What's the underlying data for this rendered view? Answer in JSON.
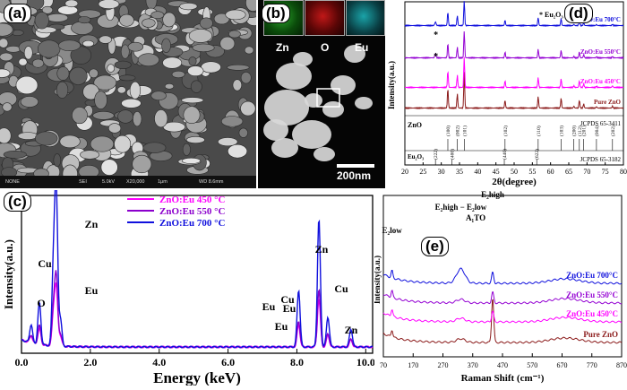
{
  "panels": {
    "a": {
      "label": "(a)",
      "sem_info": {
        "detector": "NONE",
        "mode": "SEI",
        "voltage": "5.0kV",
        "magnification": "X20,000",
        "scale": "1μm",
        "wd": "WD 8.6mm"
      }
    },
    "b": {
      "label": "(b)",
      "maps": [
        "Zn",
        "O",
        "Eu"
      ],
      "scale_bar": "200nm"
    },
    "c": {
      "label": "(c)"
    },
    "d": {
      "label": "(d)"
    },
    "e": {
      "label": "(e)"
    }
  },
  "chart_data": [
    {
      "panel": "c",
      "type": "line",
      "xlabel": "Energy (keV)",
      "ylabel": "Intensity(a.u.)",
      "xlim": [
        0,
        10.2
      ],
      "x_ticks": [
        0.0,
        2.0,
        4.0,
        6.0,
        8.0,
        10.0
      ],
      "x_tick_labels": [
        "0.0",
        "2.0",
        "4.0",
        "6.0",
        "8.0",
        "10.0"
      ],
      "legend_position": "top",
      "series": [
        {
          "name": "ZnO:Eu 450 °C",
          "color": "#ff00ff",
          "peak_scale": 0.38
        },
        {
          "name": "ZnO:Eu 550 °C",
          "color": "#8b00cc",
          "peak_scale": 0.45
        },
        {
          "name": "ZnO:Eu 700 °C",
          "color": "#1010dd",
          "peak_scale": 1.0
        }
      ],
      "peaks": [
        {
          "x": 0.28,
          "h": 0.12
        },
        {
          "x": 0.52,
          "h": 0.28
        },
        {
          "x": 0.93,
          "h": 0.55
        },
        {
          "x": 1.01,
          "h": 1.0
        },
        {
          "x": 1.13,
          "h": 0.18
        },
        {
          "x": 8.05,
          "h": 0.38
        },
        {
          "x": 8.64,
          "h": 0.85
        },
        {
          "x": 8.9,
          "h": 0.2
        },
        {
          "x": 9.57,
          "h": 0.12
        }
      ],
      "annotations": [
        "Zn",
        "Cu",
        "O",
        "Eu",
        "Eu",
        "Eu",
        "Cu",
        "Eu",
        "Zn",
        "Cu",
        "Zn"
      ]
    },
    {
      "panel": "d",
      "type": "line",
      "xlabel": "2θ(degree)",
      "ylabel": "Intensity(a.u.)",
      "xlim": [
        20,
        80
      ],
      "x_ticks": [
        20,
        25,
        30,
        35,
        40,
        45,
        50,
        55,
        60,
        65,
        70,
        75,
        80
      ],
      "series": [
        {
          "name": "Pure ZnO",
          "color": "#8b1a1a"
        },
        {
          "name": "ZnO:Eu 450°C",
          "color": "#ff00ff"
        },
        {
          "name": "ZnO:Eu 550°C",
          "color": "#9400d3"
        },
        {
          "name": "ZnO:Eu 700°C",
          "color": "#1010dd"
        }
      ],
      "peaks_2theta": [
        31.8,
        34.4,
        36.3,
        47.5,
        56.6,
        62.9,
        66.4,
        67.9,
        69.1,
        72.6,
        77.0
      ],
      "eu2o3_marker": "* Eu₂O₃",
      "eu2o3_star_2theta": 28.4,
      "reference_1": {
        "name": "ZnO",
        "card": "JCPDS 65-3411",
        "lines": [
          {
            "x": 31.8,
            "hkl": "(100)"
          },
          {
            "x": 34.4,
            "hkl": "(002)"
          },
          {
            "x": 36.3,
            "hkl": "(101)"
          },
          {
            "x": 47.5,
            "hkl": "(102)"
          },
          {
            "x": 56.6,
            "hkl": "(110)"
          },
          {
            "x": 62.9,
            "hkl": "(103)"
          },
          {
            "x": 66.4,
            "hkl": "(200)"
          },
          {
            "x": 67.9,
            "hkl": "(112)"
          },
          {
            "x": 69.1,
            "hkl": "(201)"
          },
          {
            "x": 72.6,
            "hkl": "(004)"
          },
          {
            "x": 77.0,
            "hkl": "(202)"
          }
        ]
      },
      "reference_2": {
        "name": "Eu₂O₃",
        "card": "JCPDS 65-3182",
        "lines": [
          {
            "x": 28.4,
            "hkl": "(222)"
          },
          {
            "x": 32.9,
            "hkl": "(400)"
          },
          {
            "x": 47.3,
            "hkl": "(440)"
          },
          {
            "x": 56.2,
            "hkl": "(622)"
          }
        ]
      }
    },
    {
      "panel": "e",
      "type": "line",
      "xlabel": "Raman Shift (cm⁻¹)",
      "ylabel": "Intensity(a.u.)",
      "xlim": [
        70,
        870
      ],
      "x_ticks": [
        70,
        170,
        270,
        370,
        470,
        570,
        670,
        770,
        870
      ],
      "series": [
        {
          "name": "Pure ZnO",
          "color": "#8b1a1a"
        },
        {
          "name": "ZnO:Eu 450°C",
          "color": "#ff00ff"
        },
        {
          "name": "ZnO:Eu 550°C",
          "color": "#9400d3"
        },
        {
          "name": "ZnO:Eu 700°C",
          "color": "#1010dd"
        }
      ],
      "peak_labels": [
        {
          "x": 99,
          "text": "E₂low"
        },
        {
          "x": 330,
          "text": "E₂high − E₂low"
        },
        {
          "x": 380,
          "text": "A₁TO"
        },
        {
          "x": 437,
          "text": "E₂high"
        }
      ]
    }
  ]
}
